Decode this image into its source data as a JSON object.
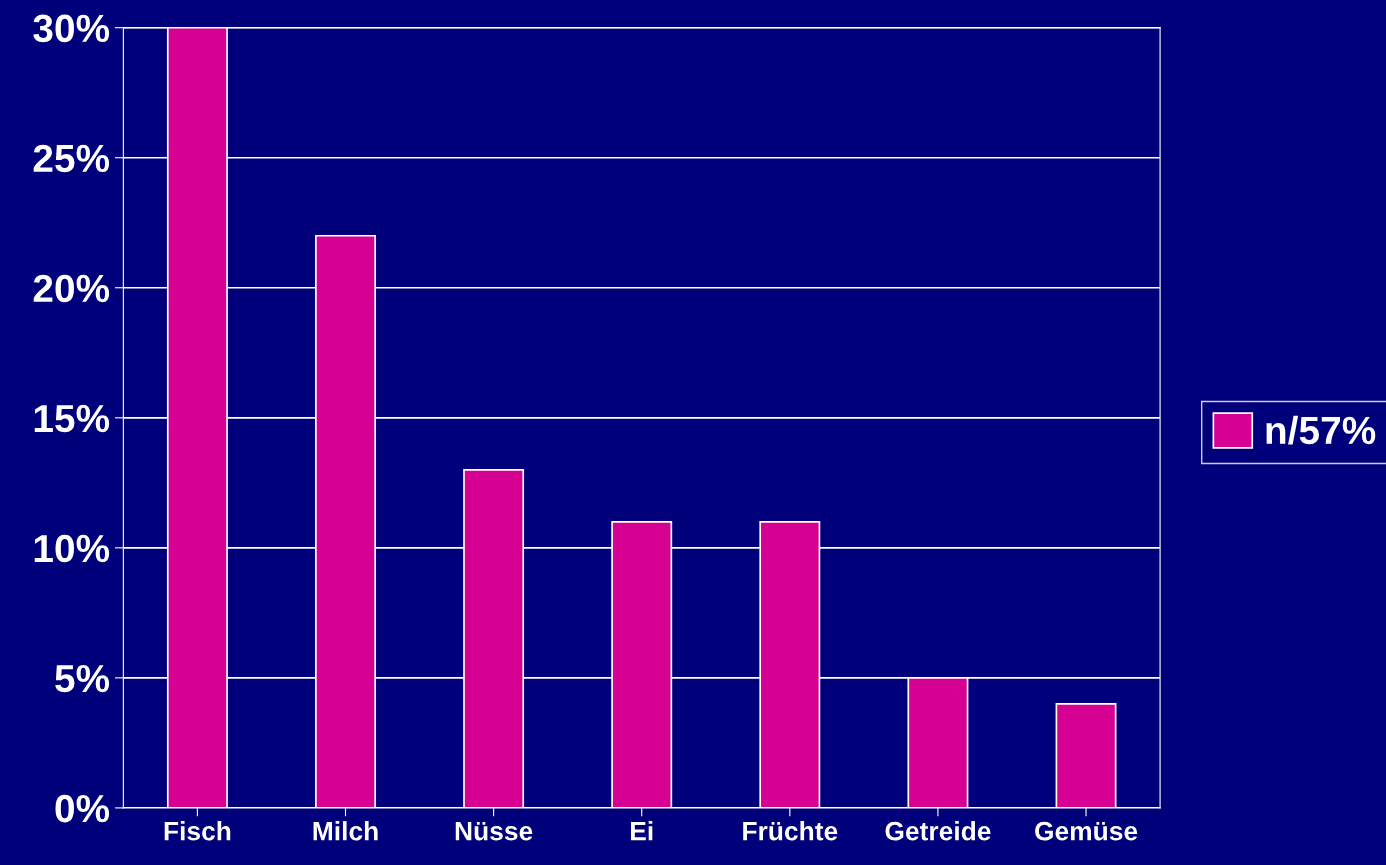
{
  "chart_data": {
    "type": "bar",
    "categories": [
      "Fisch",
      "Milch",
      "Nüsse",
      "Ei",
      "Früchte",
      "Getreide",
      "Gemüse"
    ],
    "series": [
      {
        "name": "n/57%",
        "color": "#d60093",
        "values": [
          30,
          22,
          13,
          11,
          11,
          5,
          4
        ]
      }
    ],
    "ylim": [
      0,
      30
    ],
    "yticks": [
      {
        "value": 0,
        "label": "0%"
      },
      {
        "value": 5,
        "label": "5%"
      },
      {
        "value": 10,
        "label": "10%"
      },
      {
        "value": 15,
        "label": "15%"
      },
      {
        "value": 20,
        "label": "20%"
      },
      {
        "value": 25,
        "label": "25%"
      },
      {
        "value": 30,
        "label": "30%"
      }
    ],
    "grid": "y",
    "legend": "right"
  }
}
